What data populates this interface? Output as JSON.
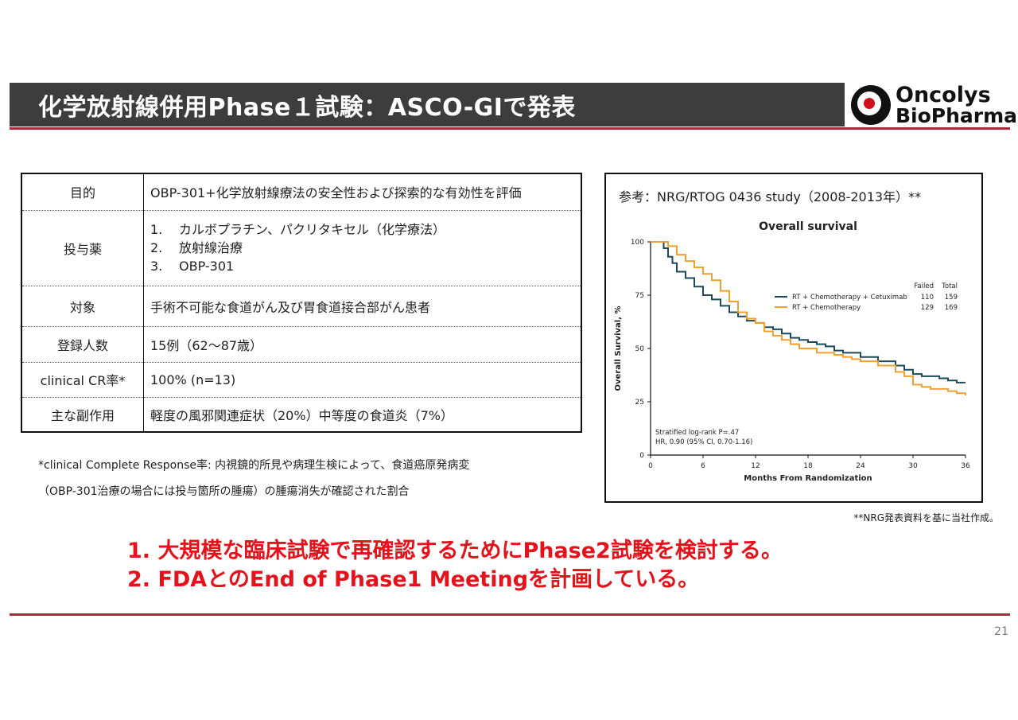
{
  "header": {
    "title": "化学放射線併用Phase１試験：ASCO-GIで発表",
    "logo_line1": "Oncolys",
    "logo_line2": "BioPharma"
  },
  "table": {
    "rows": [
      {
        "key": "目的",
        "value": "OBP-301+化学放射線療法の安全性および探索的な有効性を評価"
      },
      {
        "key": "投与薬",
        "items": [
          {
            "num": "1.",
            "text": "カルボプラチン、パクリタキセル（化学療法）"
          },
          {
            "num": "2.",
            "text": "放射線治療"
          },
          {
            "num": "3.",
            "text": "OBP-301"
          }
        ]
      },
      {
        "key": "対象",
        "value": "手術不可能な食道がん及び胃食道接合部がん患者"
      },
      {
        "key": "登録人数",
        "value": "15例（62～87歳）"
      },
      {
        "key": "clinical CR率*",
        "value": "100% (n=13)"
      },
      {
        "key": "主な副作用",
        "value": "軽度の風邪関連症状（20%）中等度の食道炎（7%）"
      }
    ]
  },
  "notes": {
    "line1": "*clinical Complete Response率: 内視鏡的所見や病理生検によって、食道癌原発病変",
    "line2": "（OBP-301治療の場合には投与箇所の腫瘍）の腫瘍消失が確認された割合"
  },
  "reference": {
    "label": "参考：NRG/RTOG 0436 study（2008-2013年）**",
    "source": "**NRG発表資料を基に当社作成。"
  },
  "chart_data": {
    "type": "line",
    "title": "Overall survival",
    "xlabel": "Months From Randomization",
    "ylabel": "Overall Survival, %",
    "xlim": [
      0,
      36
    ],
    "ylim": [
      0,
      100
    ],
    "xticks": [
      0,
      6,
      12,
      18,
      24,
      30,
      36
    ],
    "yticks": [
      0,
      25,
      50,
      75,
      100
    ],
    "legend_header": {
      "failed": "Failed",
      "total": "Total"
    },
    "legend_position": "center-right",
    "series": [
      {
        "name": "RT + Chemotherapy + Cetuximab",
        "failed": "110",
        "total": "159",
        "color": "#1d4a5a",
        "x": [
          0,
          1,
          1.5,
          2,
          2.5,
          3,
          4,
          5,
          6,
          7,
          8,
          9,
          10,
          11,
          12,
          13,
          14,
          15,
          16,
          17,
          18,
          19,
          20,
          21,
          22,
          24,
          26,
          28,
          29,
          30,
          31,
          32,
          33,
          34,
          35,
          36
        ],
        "y": [
          100,
          100,
          97,
          93,
          90,
          86,
          83,
          79,
          75,
          73,
          70,
          67,
          65,
          63,
          62,
          60,
          59,
          57,
          55,
          54,
          53,
          52,
          51,
          49,
          48,
          46,
          44,
          42,
          40,
          38,
          37,
          37,
          36,
          35,
          34,
          34
        ]
      },
      {
        "name": "RT + Chemotherapy",
        "failed": "129",
        "total": "169",
        "color": "#f0a030",
        "x": [
          0,
          1,
          2,
          3,
          4,
          5,
          6,
          7,
          8,
          9,
          10,
          11,
          12,
          13,
          14,
          15,
          16,
          17,
          18,
          19,
          20,
          21,
          22,
          23,
          24,
          26,
          28,
          29,
          30,
          31,
          32,
          33,
          34,
          35,
          36
        ],
        "y": [
          100,
          100,
          98,
          94,
          91,
          88,
          85,
          82,
          77,
          72,
          67,
          64,
          62,
          58,
          56,
          54,
          52,
          50,
          50,
          48,
          48,
          47,
          46,
          45,
          44,
          42,
          39,
          37,
          33,
          32,
          31,
          31,
          30,
          29,
          28
        ]
      }
    ],
    "annotations": [
      "Stratified log-rank P=.47",
      "HR, 0.90 (95% CI, 0.70-1.16)"
    ]
  },
  "conclusions": [
    "1.  大規模な臨床試験で再確認するためにPhase2試験を検討する。",
    "2.  FDAとのEnd of Phase1 Meetingを計画している。"
  ],
  "page_number": "21"
}
